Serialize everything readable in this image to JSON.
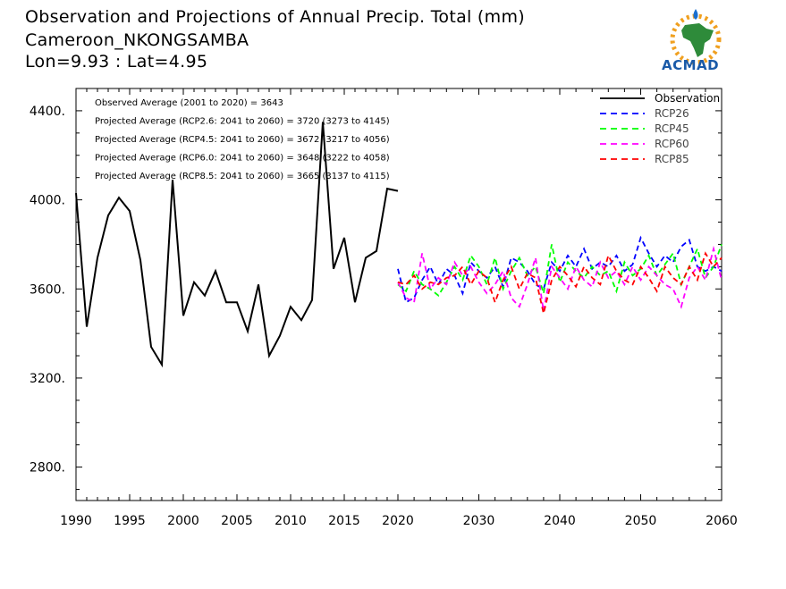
{
  "header": {
    "title": "Observation and Projections of Annual Precip. Total (mm)",
    "location": "Cameroon_NKONGSAMBA",
    "coords": "Lon=9.93 : Lat=4.95"
  },
  "logo": {
    "text": "ACMAD"
  },
  "stats": [
    "Observed Average (2001 to 2020) = 3643",
    "Projected Average (RCP2.6: 2041 to 2060) = 3720 (3273 to 4145)",
    "Projected Average (RCP4.5: 2041 to 2060) = 3672 (3217 to 4056)",
    "Projected Average (RCP6.0: 2041 to 2060) = 3648 (3222 to 4058)",
    "Projected Average (RCP8.5: 2041 to 2060) = 3665 (3137 to 4115)"
  ],
  "colors": {
    "observation": "#000000",
    "rcp26": "#0000ff",
    "rcp45": "#00ff00",
    "rcp60": "#ff00ff",
    "rcp85": "#ff0000"
  },
  "chart_data": {
    "type": "line",
    "xlim": [
      1990,
      2060
    ],
    "ylim": [
      2650,
      4500
    ],
    "x_ticks": [
      "1990",
      "1995",
      "2000",
      "2005",
      "2010",
      "2015",
      "2020",
      "2030",
      "2040",
      "2050",
      "2060"
    ],
    "x_tick_values": [
      1990,
      1995,
      2000,
      2005,
      2010,
      2015,
      2020,
      2030,
      2040,
      2050,
      2060
    ],
    "y_ticks": [
      "2800.",
      "3200.",
      "3600.",
      "4000.",
      "4400."
    ],
    "y_tick_values": [
      2800,
      3200,
      3600,
      4000,
      4400
    ],
    "legend_position": "top-right",
    "series": [
      {
        "name": "Observation",
        "key": "observation",
        "dashed": false,
        "x": [
          1990,
          1991,
          1992,
          1993,
          1994,
          1995,
          1996,
          1997,
          1998,
          1999,
          2000,
          2001,
          2002,
          2003,
          2004,
          2005,
          2006,
          2007,
          2008,
          2009,
          2010,
          2011,
          2012,
          2013,
          2014,
          2015,
          2016,
          2017,
          2018,
          2019,
          2020
        ],
        "values": [
          4030,
          3430,
          3740,
          3930,
          4010,
          3950,
          3730,
          3340,
          3260,
          4090,
          3480,
          3630,
          3570,
          3680,
          3540,
          3540,
          3410,
          3620,
          3300,
          3390,
          3520,
          3460,
          3550,
          4350,
          3690,
          3830,
          3540,
          3740,
          3770,
          4050,
          4040
        ]
      },
      {
        "name": "RCP26",
        "key": "rcp26",
        "dashed": true,
        "x": [
          2020,
          2021,
          2022,
          2023,
          2024,
          2025,
          2026,
          2027,
          2028,
          2029,
          2030,
          2031,
          2032,
          2033,
          2034,
          2035,
          2036,
          2037,
          2038,
          2039,
          2040,
          2041,
          2042,
          2043,
          2044,
          2045,
          2046,
          2047,
          2048,
          2049,
          2050,
          2051,
          2052,
          2053,
          2054,
          2055,
          2056,
          2057,
          2058,
          2059,
          2060
        ],
        "values": [
          3690,
          3540,
          3560,
          3640,
          3700,
          3620,
          3690,
          3660,
          3580,
          3720,
          3680,
          3650,
          3700,
          3610,
          3740,
          3720,
          3680,
          3620,
          3600,
          3720,
          3680,
          3750,
          3700,
          3780,
          3690,
          3720,
          3700,
          3750,
          3680,
          3710,
          3830,
          3760,
          3700,
          3750,
          3720,
          3790,
          3820,
          3700,
          3680,
          3700,
          3680
        ]
      },
      {
        "name": "RCP45",
        "key": "rcp45",
        "dashed": true,
        "x": [
          2020,
          2021,
          2022,
          2023,
          2024,
          2025,
          2026,
          2027,
          2028,
          2029,
          2030,
          2031,
          2032,
          2033,
          2034,
          2035,
          2036,
          2037,
          2038,
          2039,
          2040,
          2041,
          2042,
          2043,
          2044,
          2045,
          2046,
          2047,
          2048,
          2049,
          2050,
          2051,
          2052,
          2053,
          2054,
          2055,
          2056,
          2057,
          2058,
          2059,
          2060
        ],
        "values": [
          3620,
          3590,
          3680,
          3620,
          3600,
          3570,
          3630,
          3700,
          3640,
          3750,
          3700,
          3620,
          3740,
          3600,
          3680,
          3740,
          3660,
          3700,
          3580,
          3800,
          3630,
          3720,
          3680,
          3650,
          3700,
          3660,
          3680,
          3590,
          3720,
          3660,
          3690,
          3750,
          3660,
          3710,
          3760,
          3620,
          3700,
          3780,
          3650,
          3700,
          3800
        ]
      },
      {
        "name": "RCP60",
        "key": "rcp60",
        "dashed": true,
        "x": [
          2020,
          2021,
          2022,
          2023,
          2024,
          2025,
          2026,
          2027,
          2028,
          2029,
          2030,
          2031,
          2032,
          2033,
          2034,
          2035,
          2036,
          2037,
          2038,
          2039,
          2040,
          2041,
          2042,
          2043,
          2044,
          2045,
          2046,
          2047,
          2048,
          2049,
          2050,
          2051,
          2052,
          2053,
          2054,
          2055,
          2056,
          2057,
          2058,
          2059,
          2060
        ],
        "values": [
          3630,
          3560,
          3540,
          3760,
          3600,
          3650,
          3620,
          3720,
          3660,
          3700,
          3630,
          3580,
          3620,
          3680,
          3560,
          3520,
          3620,
          3740,
          3500,
          3700,
          3650,
          3600,
          3700,
          3640,
          3610,
          3720,
          3650,
          3680,
          3620,
          3700,
          3640,
          3700,
          3660,
          3620,
          3600,
          3520,
          3650,
          3700,
          3640,
          3780,
          3640
        ]
      },
      {
        "name": "RCP85",
        "key": "rcp85",
        "dashed": true,
        "x": [
          2020,
          2021,
          2022,
          2023,
          2024,
          2025,
          2026,
          2027,
          2028,
          2029,
          2030,
          2031,
          2032,
          2033,
          2034,
          2035,
          2036,
          2037,
          2038,
          2039,
          2040,
          2041,
          2042,
          2043,
          2044,
          2045,
          2046,
          2047,
          2048,
          2049,
          2050,
          2051,
          2052,
          2053,
          2054,
          2055,
          2056,
          2057,
          2058,
          2059,
          2060
        ],
        "values": [
          3630,
          3620,
          3660,
          3600,
          3630,
          3620,
          3650,
          3660,
          3700,
          3620,
          3680,
          3650,
          3540,
          3640,
          3700,
          3600,
          3670,
          3650,
          3490,
          3640,
          3700,
          3660,
          3610,
          3700,
          3650,
          3620,
          3750,
          3680,
          3640,
          3620,
          3700,
          3650,
          3590,
          3700,
          3650,
          3620,
          3700,
          3640,
          3760,
          3700,
          3740
        ]
      }
    ]
  }
}
